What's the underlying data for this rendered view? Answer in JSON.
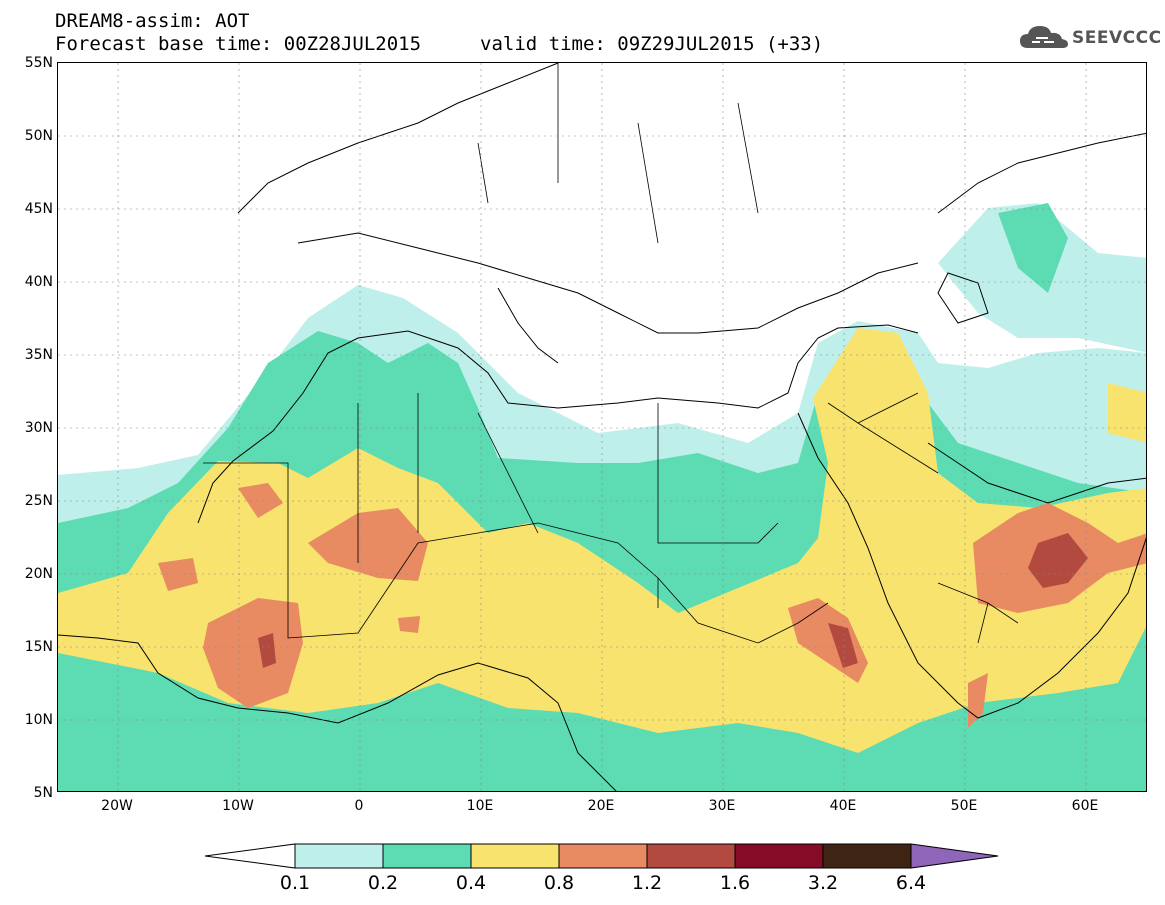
{
  "header": {
    "title": "DREAM8-assim: AOT",
    "forecast_base": "Forecast base time: 00Z28JUL2015",
    "valid_time": "valid time: 09Z29JUL2015 (+33)"
  },
  "logo": {
    "text": "SEEVCCC",
    "icon": "cloud-icon",
    "color": "#555555"
  },
  "map": {
    "lat_labels": [
      "55N",
      "50N",
      "45N",
      "40N",
      "35N",
      "30N",
      "25N",
      "20N",
      "15N",
      "10N",
      "5N"
    ],
    "lon_labels": [
      "20W",
      "10W",
      "0",
      "10E",
      "20E",
      "30E",
      "40E",
      "50E",
      "60E"
    ],
    "lat_range": [
      5,
      55
    ],
    "lon_range": [
      -25,
      65
    ]
  },
  "colorbar": {
    "levels": [
      "0.1",
      "0.2",
      "0.4",
      "0.8",
      "1.2",
      "1.6",
      "3.2",
      "6.4"
    ],
    "colors": [
      "#bfefea",
      "#5ddcb4",
      "#f7e36d",
      "#e88a62",
      "#b34a40",
      "#850b26",
      "#3d2413",
      "#8e65b8"
    ],
    "low_color": "#ffffff"
  }
}
